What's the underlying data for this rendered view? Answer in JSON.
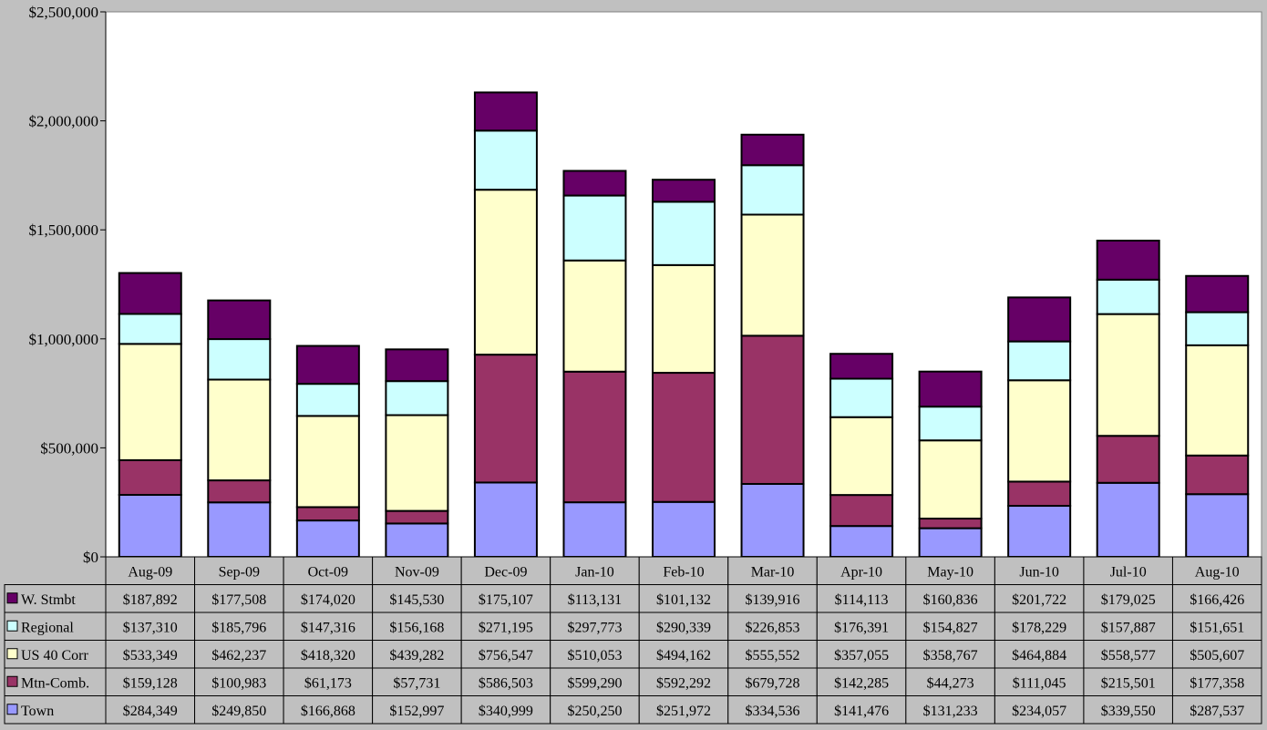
{
  "chart_data": {
    "type": "bar",
    "stacked": true,
    "categories": [
      "Aug-09",
      "Sep-09",
      "Oct-09",
      "Nov-09",
      "Dec-09",
      "Jan-10",
      "Feb-10",
      "Mar-10",
      "Apr-10",
      "May-10",
      "Jun-10",
      "Jul-10",
      "Aug-10"
    ],
    "series": [
      {
        "name": "Town",
        "color": "#9999ff",
        "values": [
          284349,
          249850,
          166868,
          152997,
          340999,
          250250,
          251972,
          334536,
          141476,
          131233,
          234057,
          339550,
          287537
        ],
        "labels": [
          "$284,349",
          "$249,850",
          "$166,868",
          "$152,997",
          "$340,999",
          "$250,250",
          "$251,972",
          "$334,536",
          "$141,476",
          "$131,233",
          "$234,057",
          "$339,550",
          "$287,537"
        ]
      },
      {
        "name": "Mtn-Comb.",
        "color": "#993366",
        "values": [
          159128,
          100983,
          61173,
          57731,
          586503,
          599290,
          592292,
          679728,
          142285,
          44273,
          111045,
          215501,
          177358
        ],
        "labels": [
          "$159,128",
          "$100,983",
          "$61,173",
          "$57,731",
          "$586,503",
          "$599,290",
          "$592,292",
          "$679,728",
          "$142,285",
          "$44,273",
          "$111,045",
          "$215,501",
          "$177,358"
        ]
      },
      {
        "name": "US 40 Corr",
        "color": "#ffffcc",
        "values": [
          533349,
          462237,
          418320,
          439282,
          756547,
          510053,
          494162,
          555552,
          357055,
          358767,
          464884,
          558577,
          505607
        ],
        "labels": [
          "$533,349",
          "$462,237",
          "$418,320",
          "$439,282",
          "$756,547",
          "$510,053",
          "$494,162",
          "$555,552",
          "$357,055",
          "$358,767",
          "$464,884",
          "$558,577",
          "$505,607"
        ]
      },
      {
        "name": "Regional",
        "color": "#ccffff",
        "values": [
          137310,
          185796,
          147316,
          156168,
          271195,
          297773,
          290339,
          226853,
          176391,
          154827,
          178229,
          157887,
          151651
        ],
        "labels": [
          "$137,310",
          "$185,796",
          "$147,316",
          "$156,168",
          "$271,195",
          "$297,773",
          "$290,339",
          "$226,853",
          "$176,391",
          "$154,827",
          "$178,229",
          "$157,887",
          "$151,651"
        ]
      },
      {
        "name": "W. Stmbt",
        "color": "#660066",
        "values": [
          187892,
          177508,
          174020,
          145530,
          175107,
          113131,
          101132,
          139916,
          114113,
          160836,
          201722,
          179025,
          166426
        ],
        "labels": [
          "$187,892",
          "$177,508",
          "$174,020",
          "$145,530",
          "$175,107",
          "$113,131",
          "$101,132",
          "$139,916",
          "$114,113",
          "$160,836",
          "$201,722",
          "$179,025",
          "$166,426"
        ]
      }
    ],
    "ylim": [
      0,
      2500000
    ],
    "yticks": [
      {
        "value": 0,
        "label": "$0"
      },
      {
        "value": 500000,
        "label": "$500,000"
      },
      {
        "value": 1000000,
        "label": "$1,000,000"
      },
      {
        "value": 1500000,
        "label": "$1,500,000"
      },
      {
        "value": 2000000,
        "label": "$2,000,000"
      },
      {
        "value": 2500000,
        "label": "$2,500,000"
      }
    ],
    "table_row_order": [
      "W. Stmbt",
      "Regional",
      "US 40 Corr",
      "Mtn-Comb.",
      "Town"
    ],
    "grid": false,
    "legend": "data-table",
    "background_color": "#c0c0c0",
    "plot_background_color": "#ffffff"
  }
}
